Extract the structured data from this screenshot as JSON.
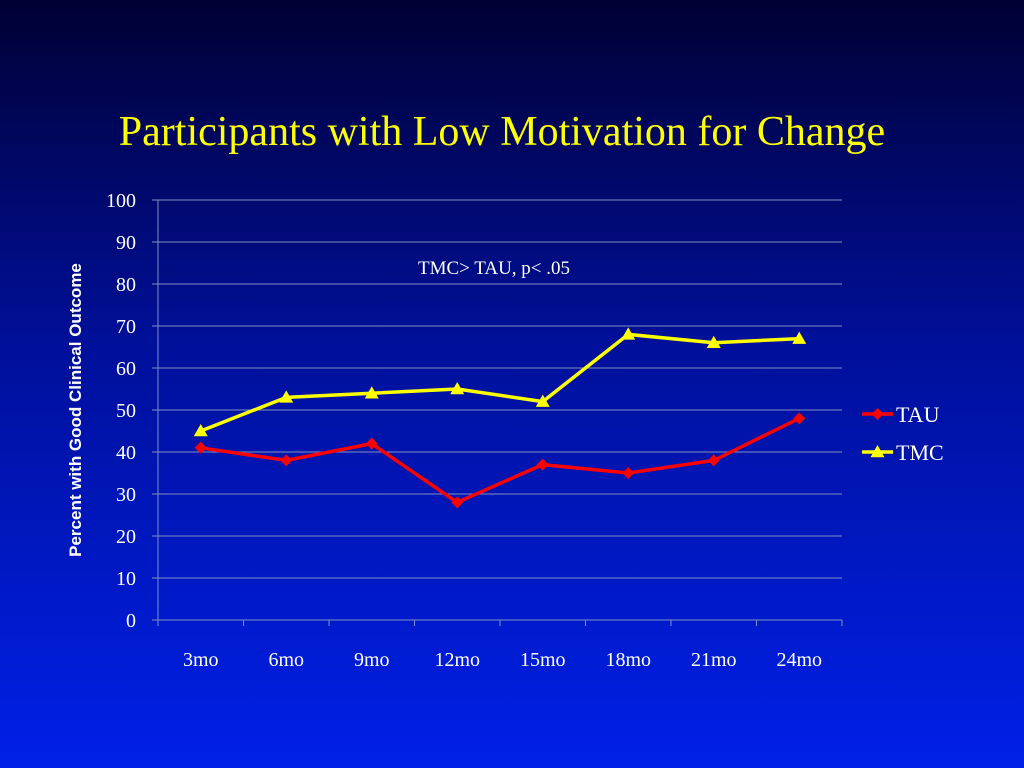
{
  "slide": {
    "title": "Participants with Low Motivation for Change"
  },
  "chart_data": {
    "type": "line",
    "title": "",
    "xlabel": "",
    "ylabel": "Percent with Good Clinical Outcome",
    "categories": [
      "3mo",
      "6mo",
      "9mo",
      "12mo",
      "15mo",
      "18mo",
      "21mo",
      "24mo"
    ],
    "ylim": [
      0,
      100
    ],
    "yticks": [
      "0",
      "10",
      "20",
      "30",
      "40",
      "50",
      "60",
      "70",
      "80",
      "90",
      "100"
    ],
    "grid": true,
    "legend_position": "right",
    "annotation": "TMC> TAU, p< .05",
    "series": [
      {
        "name": "TAU",
        "color": "#ff0000",
        "marker": "diamond",
        "values": [
          41,
          38,
          42,
          28,
          37,
          35,
          38,
          48
        ]
      },
      {
        "name": "TMC",
        "color": "#ffff00",
        "marker": "triangle",
        "values": [
          45,
          53,
          54,
          55,
          52,
          68,
          66,
          67
        ]
      }
    ]
  }
}
